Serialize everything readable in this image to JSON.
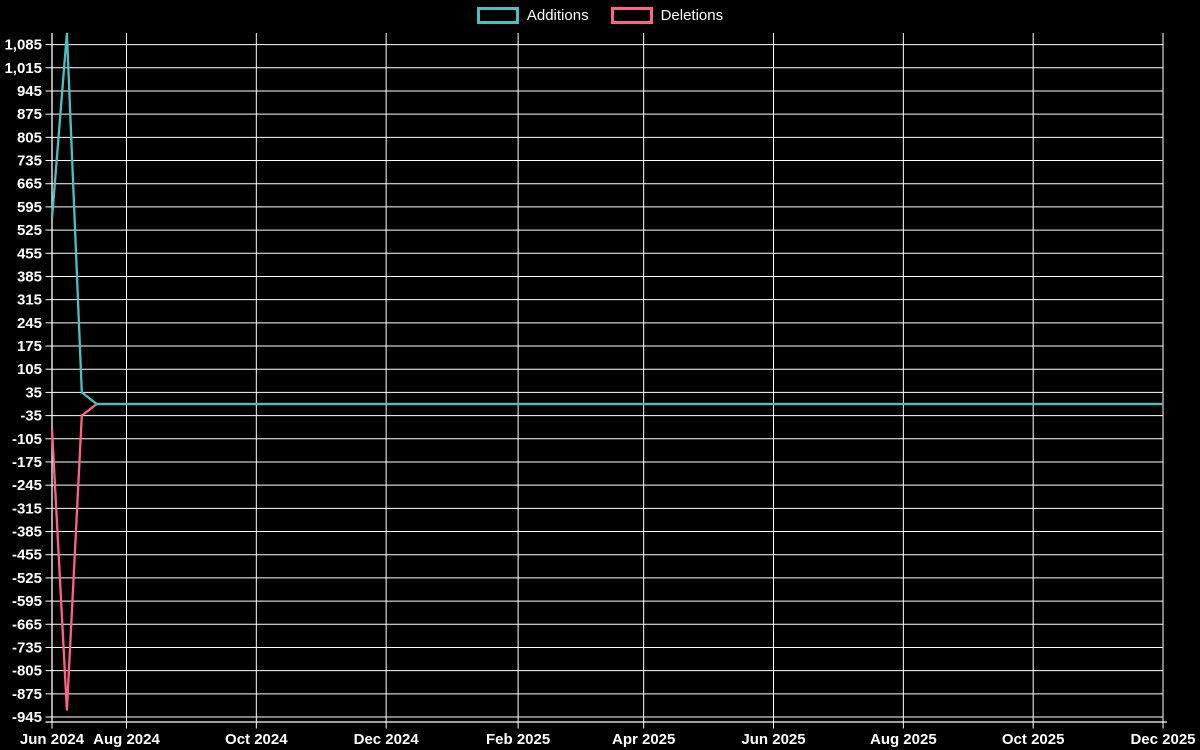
{
  "legend": {
    "items": [
      {
        "label": "Additions",
        "color": "#4bc0c0"
      },
      {
        "label": "Deletions",
        "color": "#ff6384"
      }
    ]
  },
  "chart_data": {
    "type": "line",
    "title": "",
    "xlabel": "",
    "ylabel": "",
    "background": "#000000",
    "grid": true,
    "grid_color": "#ffffff",
    "legend_position": "top",
    "x_axis": {
      "unit": "days-from-start",
      "range": [
        0,
        522
      ],
      "ticks": [
        {
          "label": "Jun 2024",
          "day": 0
        },
        {
          "label": "Aug 2024",
          "day": 35
        },
        {
          "label": "Oct 2024",
          "day": 96
        },
        {
          "label": "Dec 2024",
          "day": 157
        },
        {
          "label": "Feb 2025",
          "day": 219
        },
        {
          "label": "Apr 2025",
          "day": 278
        },
        {
          "label": "Jun 2025",
          "day": 339
        },
        {
          "label": "Aug 2025",
          "day": 400
        },
        {
          "label": "Oct 2025",
          "day": 461
        },
        {
          "label": "Dec 2025",
          "day": 522
        }
      ]
    },
    "y_axis": {
      "range": [
        -960,
        1120
      ],
      "ticks": [
        {
          "label": "1,085",
          "value": 1085
        },
        {
          "label": "1,015",
          "value": 1015
        },
        {
          "label": "945",
          "value": 945
        },
        {
          "label": "875",
          "value": 875
        },
        {
          "label": "805",
          "value": 805
        },
        {
          "label": "735",
          "value": 735
        },
        {
          "label": "665",
          "value": 665
        },
        {
          "label": "595",
          "value": 595
        },
        {
          "label": "525",
          "value": 525
        },
        {
          "label": "455",
          "value": 455
        },
        {
          "label": "385",
          "value": 385
        },
        {
          "label": "315",
          "value": 315
        },
        {
          "label": "245",
          "value": 245
        },
        {
          "label": "175",
          "value": 175
        },
        {
          "label": "105",
          "value": 105
        },
        {
          "label": "35",
          "value": 35
        },
        {
          "label": "-35",
          "value": -35
        },
        {
          "label": "-105",
          "value": -105
        },
        {
          "label": "-175",
          "value": -175
        },
        {
          "label": "-245",
          "value": -245
        },
        {
          "label": "-315",
          "value": -315
        },
        {
          "label": "-385",
          "value": -385
        },
        {
          "label": "-455",
          "value": -455
        },
        {
          "label": "-525",
          "value": -525
        },
        {
          "label": "-595",
          "value": -595
        },
        {
          "label": "-665",
          "value": -665
        },
        {
          "label": "-735",
          "value": -735
        },
        {
          "label": "-805",
          "value": -805
        },
        {
          "label": "-875",
          "value": -875
        },
        {
          "label": "-945",
          "value": -945
        }
      ]
    },
    "series": [
      {
        "name": "Deletions",
        "color": "#ff6384",
        "points": [
          {
            "day": 0,
            "value": -75
          },
          {
            "day": 7,
            "value": -925
          },
          {
            "day": 14,
            "value": -35
          },
          {
            "day": 21,
            "value": 0
          },
          {
            "day": 522,
            "value": 0
          }
        ]
      },
      {
        "name": "Additions",
        "color": "#4bc0c0",
        "points": [
          {
            "day": 0,
            "value": 560
          },
          {
            "day": 7,
            "value": 1120
          },
          {
            "day": 14,
            "value": 35
          },
          {
            "day": 21,
            "value": 0
          },
          {
            "day": 522,
            "value": 0
          }
        ]
      }
    ]
  }
}
